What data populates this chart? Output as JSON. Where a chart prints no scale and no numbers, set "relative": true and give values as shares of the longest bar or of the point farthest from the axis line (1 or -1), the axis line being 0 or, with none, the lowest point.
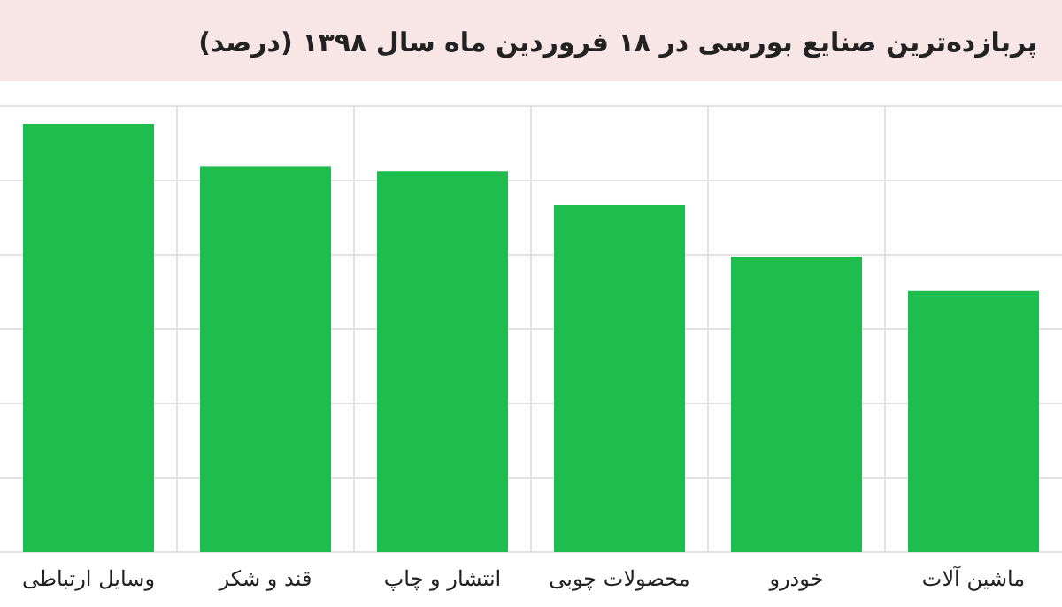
{
  "chart_data": {
    "type": "bar",
    "title": "پربازده‌ترین صنایع بورسی در ۱۸ فروردین ماه سال ۱۳۹۸ (درصد)",
    "categories": [
      "وسایل ارتباطی",
      "قند و شکر",
      "انتشار و چاپ",
      "محصولات چوبی",
      "خودرو",
      "ماشین آلات"
    ],
    "values": [
      1,
      0.9,
      0.89,
      0.81,
      0.69,
      0.61
    ],
    "color": "#1fbd4e",
    "relative": true,
    "grid": true
  }
}
